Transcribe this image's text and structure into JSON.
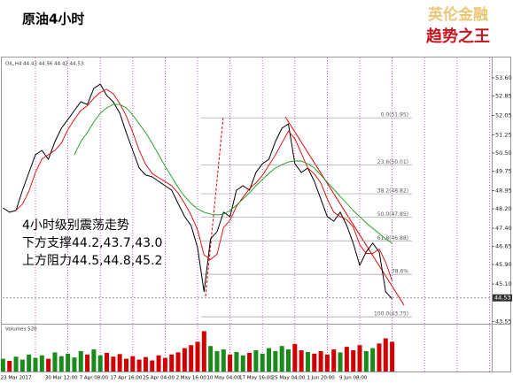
{
  "header": {
    "title": "原油4小时",
    "logo_top": "英伦金融",
    "logo_bottom": "趋势之王"
  },
  "annotations": [
    "4小时级别震荡走势",
    "下方支撑44.2,43.7,43.0",
    "上方阻力44.5,44.8,45.2"
  ],
  "chart_data": {
    "type": "line",
    "symbol_label": "OIL,H4 44.43 44.56 44.42 44.53",
    "categories": [
      null,
      null,
      "23 Mar 2017",
      null,
      null,
      null,
      null,
      null,
      null,
      "30 Mar 12:00",
      null,
      null,
      null,
      null,
      "7 Apr 08:00",
      null,
      null,
      null,
      null,
      "17 Apr 16:00",
      null,
      null,
      null,
      null,
      "25 Apr 04:00",
      null,
      null,
      null,
      null,
      "2 May 16:00",
      null,
      null,
      null,
      null,
      "10 May 04:00",
      null,
      null,
      null,
      null,
      "17 May 16:00",
      null,
      null,
      null,
      null,
      "25 May 04:00",
      null,
      null,
      null,
      null,
      "1 Jun 20:00",
      null,
      null,
      null,
      null,
      "9 Jun 08:00",
      null,
      null,
      null,
      null,
      null,
      null
    ],
    "series": [
      {
        "color": "#000000",
        "values": [
          48.24,
          48.06,
          48.13,
          48.97,
          49.7,
          50.43,
          50.61,
          50.24,
          50.97,
          51.52,
          51.88,
          52.25,
          52.61,
          52.5,
          53.16,
          53.34,
          52.87,
          52.61,
          52.14,
          51.34,
          50.61,
          49.88,
          49.59,
          49.52,
          49.33,
          49.15,
          48.97,
          48.42,
          47.88,
          47.51,
          46.6,
          44.78,
          46.96,
          47.26,
          48.06,
          47.88,
          48.97,
          49.15,
          48.97,
          49.7,
          50.06,
          50.24,
          50.97,
          51.52,
          51.7,
          50.06,
          49.7,
          49.88,
          49.33,
          48.6,
          47.88,
          47.69,
          48.06,
          47.51,
          46.78,
          45.87,
          46.42,
          46.78,
          46.42,
          44.78,
          44.49
        ]
      },
      {
        "color": "#e00000",
        "values": [
          null,
          null,
          48.14,
          48.39,
          48.93,
          49.7,
          50.25,
          50.43,
          50.61,
          50.91,
          51.46,
          51.88,
          52.25,
          52.45,
          52.76,
          53.0,
          53.12,
          52.94,
          52.54,
          52.03,
          51.36,
          50.61,
          50.03,
          49.66,
          49.48,
          49.33,
          49.15,
          48.85,
          48.42,
          47.94,
          47.33,
          46.3,
          46.11,
          46.33,
          47.43,
          47.73,
          48.3,
          48.67,
          49.03,
          49.27,
          49.58,
          50.0,
          50.42,
          50.91,
          51.4,
          51.09,
          50.49,
          49.88,
          49.64,
          49.27,
          48.6,
          48.06,
          47.88,
          47.75,
          47.45,
          46.72,
          46.36,
          46.36,
          46.54,
          46.0,
          45.23
        ]
      },
      {
        "color": "#1a9a1a",
        "values": [
          null,
          null,
          null,
          null,
          null,
          null,
          null,
          null,
          null,
          null,
          null,
          50.43,
          50.97,
          51.34,
          51.78,
          52.14,
          52.36,
          52.5,
          52.5,
          52.36,
          52.07,
          51.7,
          51.34,
          50.9,
          50.43,
          49.95,
          49.52,
          49.08,
          48.71,
          48.42,
          48.2,
          48.06,
          47.98,
          47.95,
          47.98,
          48.13,
          48.35,
          48.6,
          48.86,
          49.15,
          49.41,
          49.66,
          49.88,
          50.02,
          50.13,
          50.17,
          50.17,
          50.06,
          49.88,
          49.59,
          49.3,
          49.01,
          48.71,
          48.42,
          48.13,
          47.88,
          47.62,
          47.4,
          47.18,
          46.96,
          46.78
        ]
      }
    ],
    "ylim": [
      43.5,
      54.4
    ],
    "yticks": [
      {
        "value": 53.6,
        "label": "53.60"
      },
      52.85,
      52.05,
      51.25,
      {
        "value": 50.5,
        "label": "50.50"
      },
      49.75,
      48.95,
      {
        "value": 48.2,
        "label": "48.20"
      },
      {
        "value": 47.4,
        "label": "47.40"
      },
      46.65,
      {
        "value": 45.9,
        "label": "45.90"
      },
      {
        "value": 45.1,
        "label": "45.10"
      },
      43.55
    ],
    "current_price": 44.53,
    "fib_levels": [
      {
        "value": 51.95,
        "label": "0.0(51.95)"
      },
      {
        "value": 50.01,
        "label": "23.6(50.01)"
      },
      {
        "value": 48.82,
        "label": "38.2(48.82)"
      },
      {
        "value": 47.85,
        "label": "50.0(47.85)"
      },
      {
        "value": 46.88,
        "label": "61.8(46.88)"
      },
      {
        "value": 45.5,
        "label": "78.6%"
      },
      {
        "value": 43.75,
        "label": "100.0(43.75)"
      }
    ],
    "volume": {
      "label": "Volumes 520",
      "ylim": [
        0,
        100
      ],
      "up_color": "#1a8a1a",
      "down_color": "#d00000",
      "values": [
        30,
        25,
        35,
        28,
        40,
        32,
        38,
        30,
        45,
        36,
        42,
        33,
        48,
        40,
        52,
        38,
        44,
        35,
        41,
        30,
        36,
        28,
        34,
        26,
        38,
        32,
        40,
        45,
        55,
        62,
        70,
        95,
        60,
        48,
        52,
        40,
        46,
        38,
        44,
        50,
        42,
        55,
        48,
        60,
        52,
        65,
        50,
        46,
        42,
        48,
        40,
        52,
        45,
        58,
        50,
        62,
        48,
        55,
        66,
        78,
        70
      ]
    }
  }
}
